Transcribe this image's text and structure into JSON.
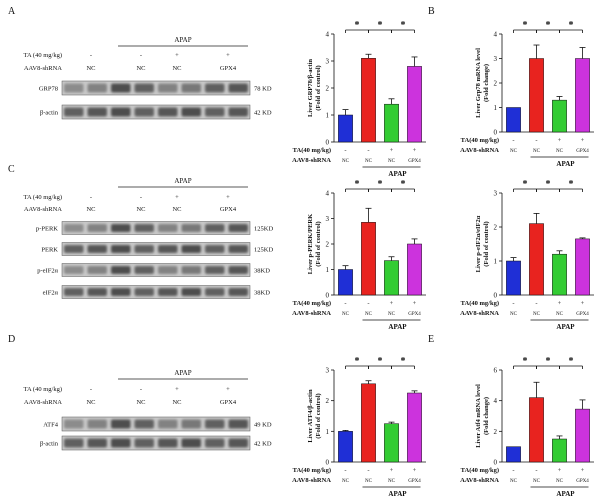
{
  "panel_labels": [
    "A",
    "B",
    "C",
    "D",
    "E"
  ],
  "blots": {
    "A": {
      "apap_label": "APAP",
      "cond_rows": [
        {
          "label": "TA (40 mg/kg)",
          "values": [
            "-",
            "-",
            "+",
            "+"
          ]
        },
        {
          "label": "AAV8-shRNA",
          "values": [
            "NC",
            "NC",
            "NC",
            "GPX4"
          ]
        }
      ],
      "bands": [
        {
          "label": "GRP78",
          "size": "78 KD"
        },
        {
          "label": "β-actin",
          "size": "42 KD"
        }
      ]
    },
    "C": {
      "apap_label": "APAP",
      "cond_rows": [
        {
          "label": "TA (40 mg/kg)",
          "values": [
            "-",
            "-",
            "+",
            "+"
          ]
        },
        {
          "label": "AAV8-shRNA",
          "values": [
            "NC",
            "NC",
            "NC",
            "GPX4"
          ]
        }
      ],
      "bands": [
        {
          "label": "p-PERK",
          "size": "125KD"
        },
        {
          "label": "PERK",
          "size": "125KD"
        },
        {
          "label": "p-eIF2α",
          "size": "38KD"
        },
        {
          "label": "eIF2α",
          "size": "38KD"
        }
      ]
    },
    "D": {
      "apap_label": "APAP",
      "cond_rows": [
        {
          "label": "TA (40 mg/kg)",
          "values": [
            "-",
            "-",
            "+",
            "+"
          ]
        },
        {
          "label": "AAV8-shRNA",
          "values": [
            "NC",
            "NC",
            "NC",
            "GPX4"
          ]
        }
      ],
      "bands": [
        {
          "label": "ATF4",
          "size": "49 KD"
        },
        {
          "label": "β-actin",
          "size": "42 KD"
        }
      ]
    }
  },
  "chart_data": [
    {
      "id": "A-bar",
      "type": "bar",
      "ylabel": "Liver GRP78/β-actin\n(Fold of control)",
      "ylim": [
        0,
        4
      ],
      "yticks": [
        0,
        1,
        2,
        3,
        4
      ],
      "values": [
        1.0,
        3.1,
        1.4,
        2.8
      ],
      "errors": [
        0.2,
        0.15,
        0.2,
        0.35
      ],
      "colors": [
        "#1f2fd6",
        "#e8231f",
        "#33cc33",
        "#cc33dd"
      ],
      "significance": [
        "*",
        "*",
        "*"
      ],
      "ta_row": {
        "label": "TA(40 mg/kg)",
        "values": [
          "-",
          "-",
          "+",
          "+"
        ]
      },
      "shrna_row": {
        "label": "AAV8-shRNA",
        "values": [
          "NC",
          "NC",
          "NC",
          "GPX4"
        ]
      },
      "apap_label": "APAP"
    },
    {
      "id": "B-bar",
      "type": "bar",
      "ylabel": "Liver Grp78 mRNA level\n(Fold change)",
      "ylim": [
        0,
        4
      ],
      "yticks": [
        0,
        1,
        2,
        3,
        4
      ],
      "values": [
        1.0,
        3.0,
        1.3,
        3.0
      ],
      "errors": [
        0.0,
        0.55,
        0.15,
        0.45
      ],
      "colors": [
        "#1f2fd6",
        "#e8231f",
        "#33cc33",
        "#cc33dd"
      ],
      "significance": [
        "*",
        "*",
        "*"
      ],
      "ta_row": {
        "label": "TA(40 mg/kg)",
        "values": [
          "-",
          "-",
          "+",
          "+"
        ]
      },
      "shrna_row": {
        "label": "AAV8-shRNA",
        "values": [
          "NC",
          "NC",
          "NC",
          "GPX4"
        ]
      },
      "apap_label": "APAP"
    },
    {
      "id": "C-bar1",
      "type": "bar",
      "ylabel": "Liver p-PERK/PERK\n(Fold of control)",
      "ylim": [
        0,
        4
      ],
      "yticks": [
        0,
        1,
        2,
        3,
        4
      ],
      "values": [
        1.0,
        2.85,
        1.35,
        2.0
      ],
      "errors": [
        0.15,
        0.55,
        0.15,
        0.2
      ],
      "colors": [
        "#1f2fd6",
        "#e8231f",
        "#33cc33",
        "#cc33dd"
      ],
      "significance": [
        "*",
        "*",
        "*"
      ],
      "ta_row": {
        "label": "TA(40 mg/kg)",
        "values": [
          "-",
          "-",
          "+",
          "+"
        ]
      },
      "shrna_row": {
        "label": "AAV8-shRNA",
        "values": [
          "NC",
          "NC",
          "NC",
          "GPX4"
        ]
      },
      "apap_label": "APAP"
    },
    {
      "id": "C-bar2",
      "type": "bar",
      "ylabel": "Liver p-eIF2α/eIF2α\n(Fold of control)",
      "ylim": [
        0,
        3
      ],
      "yticks": [
        0,
        1,
        2,
        3
      ],
      "values": [
        1.0,
        2.1,
        1.2,
        1.65
      ],
      "errors": [
        0.1,
        0.3,
        0.1,
        0.03
      ],
      "colors": [
        "#1f2fd6",
        "#e8231f",
        "#33cc33",
        "#cc33dd"
      ],
      "significance": [
        "*",
        "*",
        "*"
      ],
      "ta_row": {
        "label": "TA(40 mg/kg)",
        "values": [
          "-",
          "-",
          "+",
          "+"
        ]
      },
      "shrna_row": {
        "label": "AAV8-shRNA",
        "values": [
          "NC",
          "NC",
          "NC",
          "GPX4"
        ]
      },
      "apap_label": "APAP"
    },
    {
      "id": "D-bar",
      "type": "bar",
      "ylabel": "Liver ATF4/β-actin\n(Fold of control)",
      "ylim": [
        0,
        3
      ],
      "yticks": [
        0,
        1,
        2,
        3
      ],
      "values": [
        1.0,
        2.55,
        1.25,
        2.25
      ],
      "errors": [
        0.03,
        0.1,
        0.05,
        0.07
      ],
      "colors": [
        "#1f2fd6",
        "#e8231f",
        "#33cc33",
        "#cc33dd"
      ],
      "significance": [
        "*",
        "*",
        "*"
      ],
      "ta_row": {
        "label": "TA(40 mg/kg)",
        "values": [
          "-",
          "-",
          "+",
          "+"
        ]
      },
      "shrna_row": {
        "label": "AAV8-shRNA",
        "values": [
          "NC",
          "NC",
          "NC",
          "GPX4"
        ]
      },
      "apap_label": "APAP"
    },
    {
      "id": "E-bar",
      "type": "bar",
      "ylabel": "Liver Atf4 mRNA level\n(Fold change)",
      "ylim": [
        0,
        6
      ],
      "yticks": [
        0,
        2,
        4,
        6
      ],
      "values": [
        1.0,
        4.2,
        1.5,
        3.45
      ],
      "errors": [
        0.0,
        1.0,
        0.2,
        0.6
      ],
      "colors": [
        "#1f2fd6",
        "#e8231f",
        "#33cc33",
        "#cc33dd"
      ],
      "significance": [
        "*",
        "*",
        "*"
      ],
      "ta_row": {
        "label": "TA(40 mg/kg)",
        "values": [
          "-",
          "-",
          "+",
          "+"
        ]
      },
      "shrna_row": {
        "label": "AAV8-shRNA",
        "values": [
          "NC",
          "NC",
          "NC",
          "GPX4"
        ]
      },
      "apap_label": "APAP"
    }
  ]
}
